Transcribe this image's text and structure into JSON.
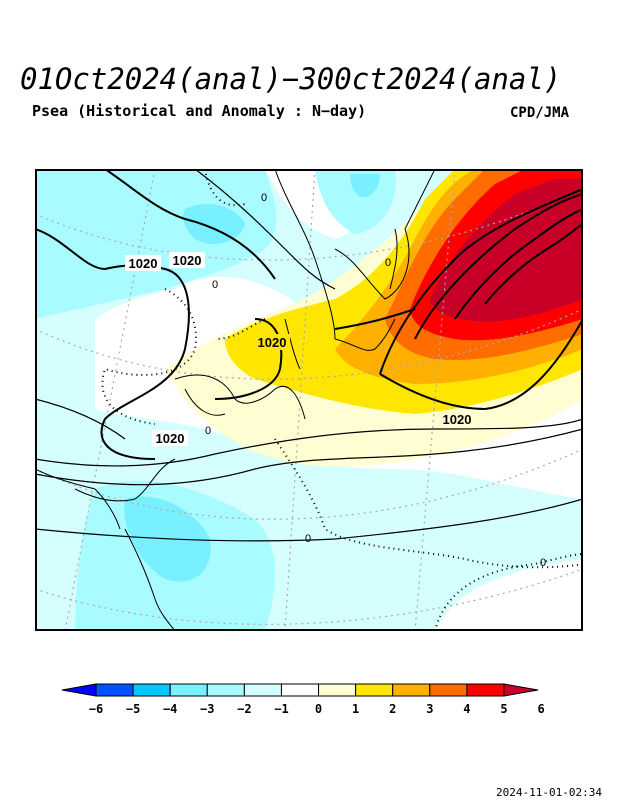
{
  "title": "01Oct2024(anal)−300ct2024(anal)",
  "subtitle": "Psea (Historical and Anomaly : N−day)",
  "credit": "CPD/JMA",
  "timestamp": "2024-11-01-02:34",
  "map": {
    "contour_labels": [
      "1020",
      "1020",
      "1020",
      "1020",
      "1020",
      "0",
      "0",
      "0",
      "0",
      "0",
      "0"
    ]
  },
  "colorbar": {
    "ticks": [
      "−6",
      "−5",
      "−4",
      "−3",
      "−2",
      "−1",
      "0",
      "1",
      "2",
      "3",
      "4",
      "5",
      "6"
    ],
    "colors": [
      "#0000ff",
      "#0050ff",
      "#00c8ff",
      "#78f0ff",
      "#a8fcff",
      "#d4fffe",
      "#ffffff",
      "#fffdd2",
      "#ffe600",
      "#ffb000",
      "#ff6c00",
      "#ff0000",
      "#c80028"
    ]
  }
}
